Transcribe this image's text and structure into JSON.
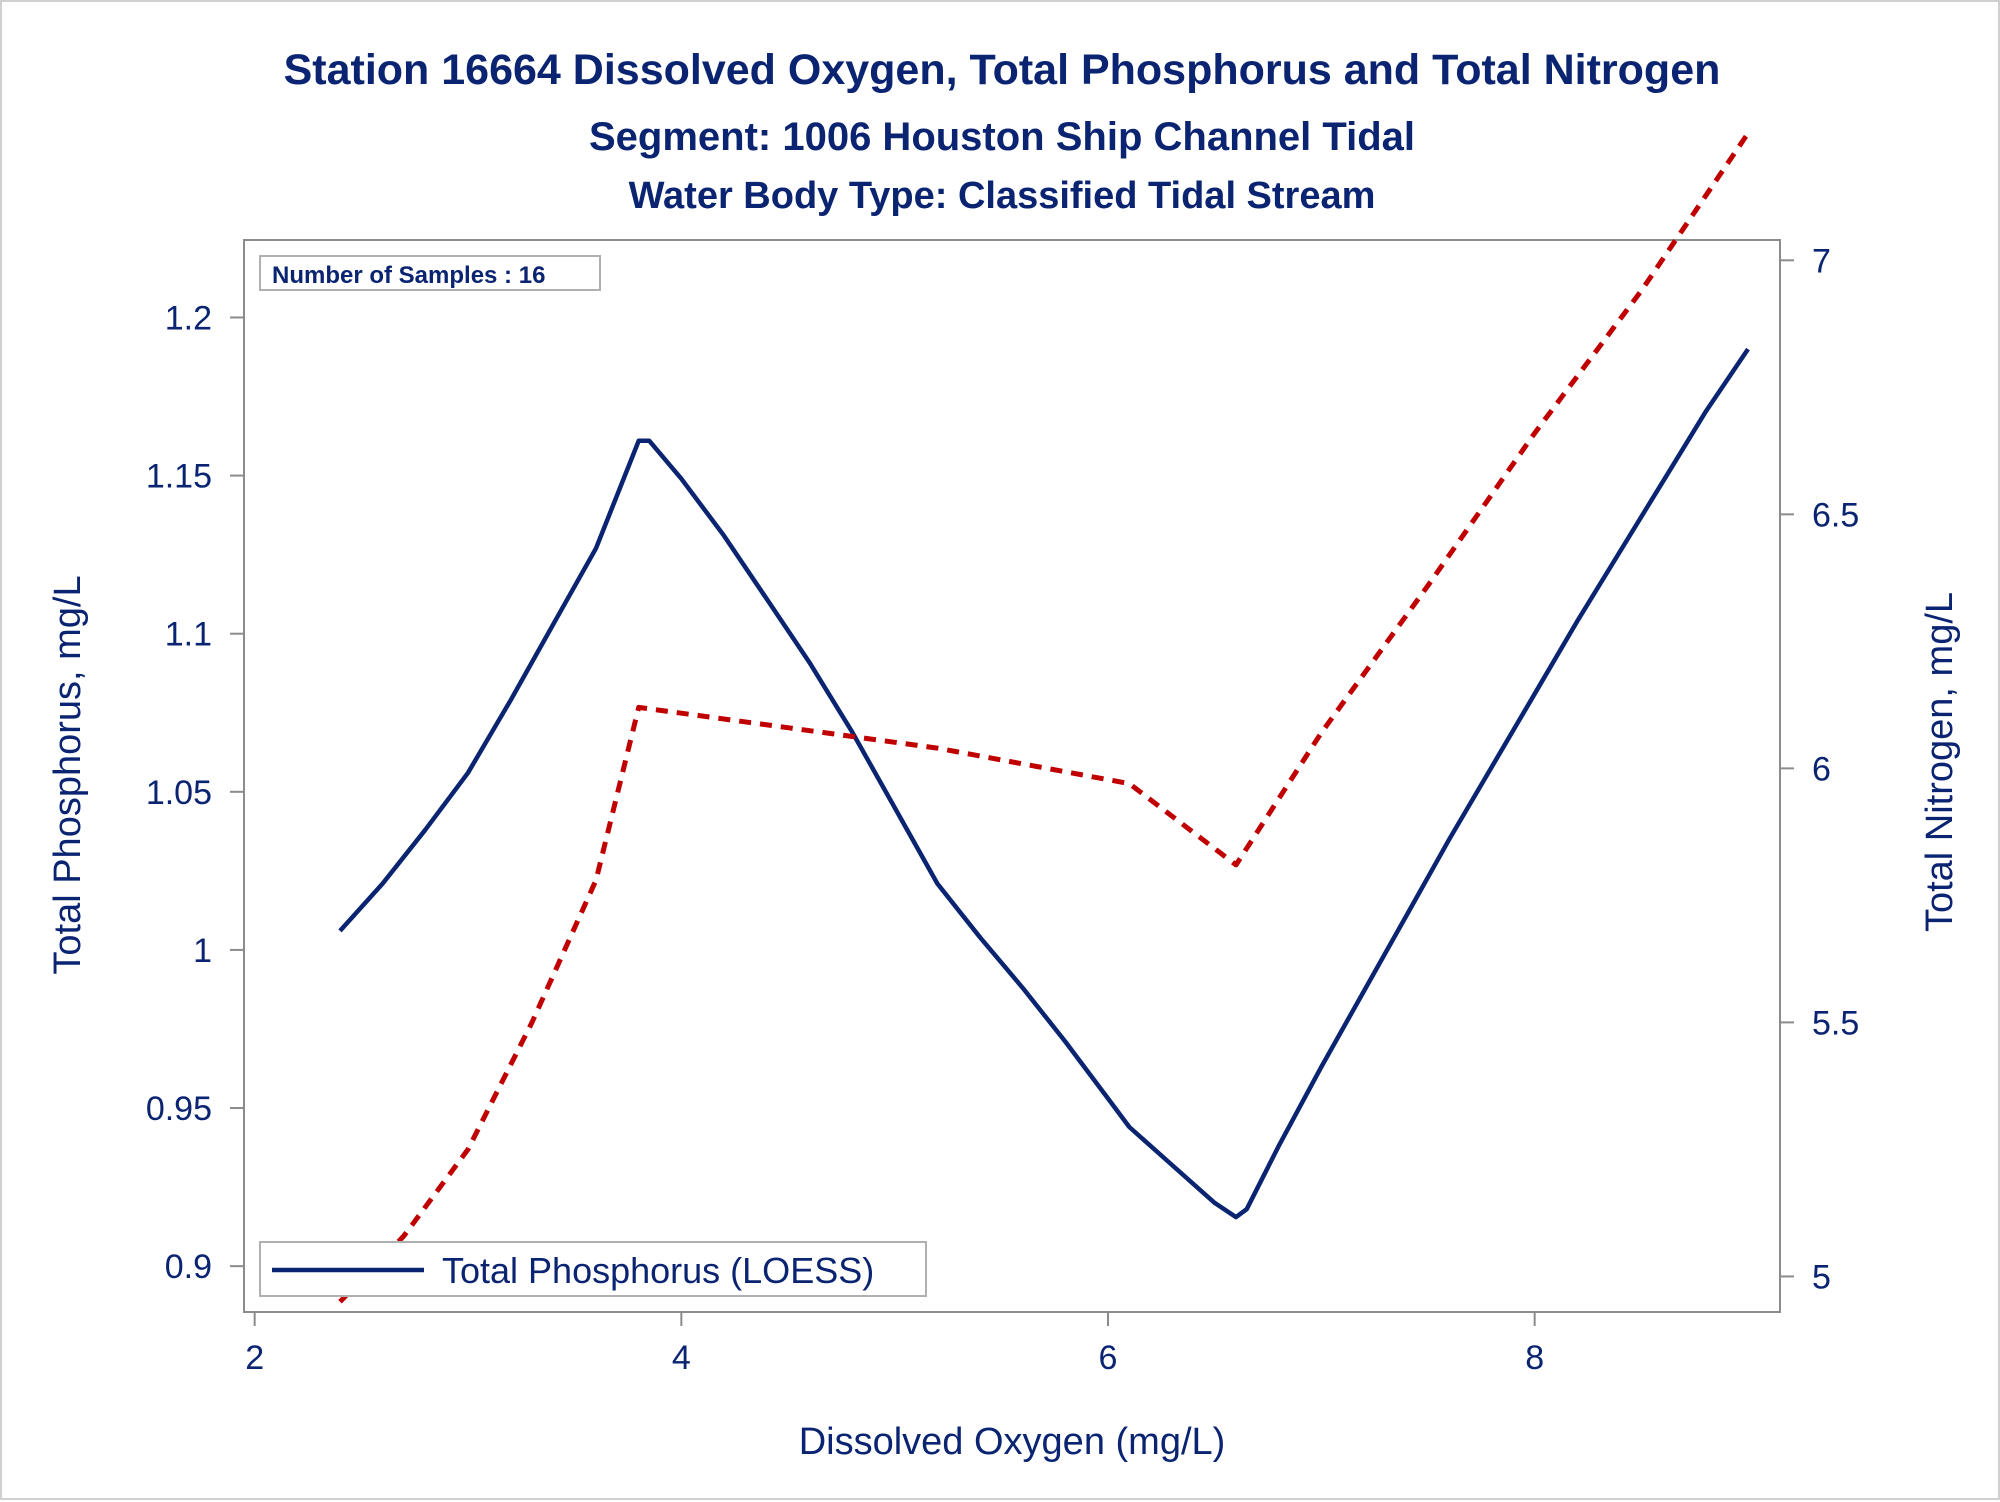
{
  "colors": {
    "text": "#0a2472",
    "axis": "#8c8c8c",
    "series_solid": "#0a2472",
    "series_dashed": "#c00000",
    "background": "#ffffff"
  },
  "chart_data": {
    "type": "line",
    "title": "Station 16664  Dissolved Oxygen, Total Phosphorus and Total Nitrogen",
    "subtitle": "Segment: 1006  Houston Ship Channel Tidal",
    "subtitle2": "Water Body Type: Classified Tidal Stream",
    "xlabel": "Dissolved Oxygen (mg/L)",
    "ylabel_left": "Total Phosphorus, mg/L",
    "ylabel_right": "Total Nitrogen, mg/L",
    "xlim": [
      1.95,
      9.15
    ],
    "ylim_left": [
      0.8855,
      1.2245
    ],
    "ylim_right": [
      4.93,
      7.04
    ],
    "x_ticks": [
      2,
      4,
      6,
      8
    ],
    "y_ticks_left": [
      0.9,
      0.95,
      1,
      1.05,
      1.1,
      1.15,
      1.2
    ],
    "y_ticks_right": [
      5,
      5.5,
      6,
      6.5,
      7
    ],
    "grid": false,
    "annotation": "Number of Samples : 16",
    "legend": {
      "position": "bottom-left",
      "entries": [
        "Total Phosphorus (LOESS)"
      ]
    },
    "series": [
      {
        "name": "Total Phosphorus (LOESS)",
        "axis": "left",
        "style": "solid",
        "x": [
          2.4,
          2.6,
          2.8,
          3.0,
          3.2,
          3.4,
          3.6,
          3.8,
          3.85,
          4.0,
          4.2,
          4.4,
          4.6,
          4.8,
          5.0,
          5.2,
          5.4,
          5.6,
          5.8,
          6.0,
          6.1,
          6.3,
          6.5,
          6.6,
          6.65,
          6.8,
          7.0,
          7.2,
          7.4,
          7.6,
          7.8,
          8.0,
          8.2,
          8.4,
          8.6,
          8.8,
          9.0
        ],
        "values": [
          1.006,
          1.021,
          1.038,
          1.056,
          1.079,
          1.103,
          1.127,
          1.161,
          1.161,
          1.149,
          1.131,
          1.111,
          1.091,
          1.069,
          1.045,
          1.021,
          1.004,
          0.988,
          0.971,
          0.953,
          0.944,
          0.932,
          0.92,
          0.9155,
          0.918,
          0.938,
          0.963,
          0.987,
          1.011,
          1.035,
          1.058,
          1.081,
          1.104,
          1.126,
          1.148,
          1.17,
          1.19
        ]
      },
      {
        "axis": "right",
        "style": "dashed",
        "x": [
          2.4,
          2.7,
          3.0,
          3.3,
          3.6,
          3.8,
          4.5,
          5.2,
          6.1,
          6.6,
          7.0,
          7.5,
          8.0,
          8.5,
          9.0
        ],
        "values": [
          4.95,
          5.08,
          5.25,
          5.5,
          5.78,
          6.12,
          6.08,
          6.04,
          5.97,
          5.81,
          6.07,
          6.36,
          6.66,
          6.94,
          7.25
        ]
      }
    ]
  }
}
